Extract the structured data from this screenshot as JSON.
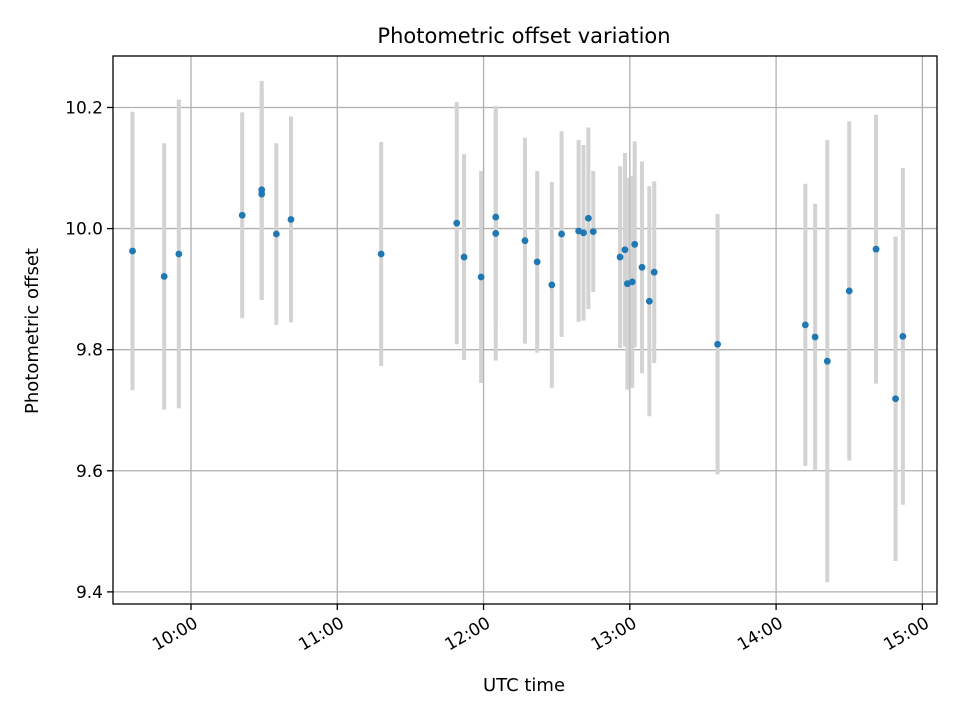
{
  "chart_data": {
    "type": "scatter",
    "title": "Photometric offset variation",
    "xlabel": "UTC time",
    "ylabel": "Photometric offset",
    "xlim": [
      "09:28",
      "15:06"
    ],
    "ylim": [
      9.38,
      10.285
    ],
    "x_ticks": [
      "10:00",
      "11:00",
      "12:00",
      "13:00",
      "14:00",
      "15:00"
    ],
    "y_ticks": [
      9.4,
      9.6,
      9.8,
      10.0,
      10.2
    ],
    "grid": true,
    "colors": {
      "point": "#1f77b4",
      "errorbar": "#d3d3d3",
      "grid": "#b0b0b0",
      "axes": "#000000"
    },
    "series": [
      {
        "points": [
          {
            "x": "09:36",
            "y": 9.963,
            "err": 0.23
          },
          {
            "x": "09:49",
            "y": 9.921,
            "err": 0.22
          },
          {
            "x": "09:55",
            "y": 9.958,
            "err": 0.255
          },
          {
            "x": "10:21",
            "y": 10.022,
            "err": 0.17
          },
          {
            "x": "10:29",
            "y": 10.057,
            "err": 0.175
          },
          {
            "x": "10:29",
            "y": 10.064,
            "err": 0.18
          },
          {
            "x": "10:35",
            "y": 9.991,
            "err": 0.15
          },
          {
            "x": "10:41",
            "y": 10.015,
            "err": 0.17
          },
          {
            "x": "11:18",
            "y": 9.958,
            "err": 0.185
          },
          {
            "x": "11:49",
            "y": 10.009,
            "err": 0.2
          },
          {
            "x": "11:52",
            "y": 9.953,
            "err": 0.17
          },
          {
            "x": "11:59",
            "y": 9.92,
            "err": 0.175
          },
          {
            "x": "12:05",
            "y": 10.019,
            "err": 0.175
          },
          {
            "x": "12:05",
            "y": 9.992,
            "err": 0.21
          },
          {
            "x": "12:17",
            "y": 9.98,
            "err": 0.17
          },
          {
            "x": "12:22",
            "y": 9.945,
            "err": 0.15
          },
          {
            "x": "12:28",
            "y": 9.907,
            "err": 0.17
          },
          {
            "x": "12:32",
            "y": 9.991,
            "err": 0.17
          },
          {
            "x": "12:39",
            "y": 9.996,
            "err": 0.15
          },
          {
            "x": "12:41",
            "y": 9.993,
            "err": 0.145
          },
          {
            "x": "12:43",
            "y": 10.017,
            "err": 0.15
          },
          {
            "x": "12:45",
            "y": 9.995,
            "err": 0.1
          },
          {
            "x": "12:56",
            "y": 9.953,
            "err": 0.15
          },
          {
            "x": "12:58",
            "y": 9.965,
            "err": 0.16
          },
          {
            "x": "12:59",
            "y": 9.909,
            "err": 0.175
          },
          {
            "x": "13:01",
            "y": 9.912,
            "err": 0.175
          },
          {
            "x": "13:02",
            "y": 9.974,
            "err": 0.17
          },
          {
            "x": "13:05",
            "y": 9.936,
            "err": 0.175
          },
          {
            "x": "13:08",
            "y": 9.88,
            "err": 0.19
          },
          {
            "x": "13:10",
            "y": 9.928,
            "err": 0.15
          },
          {
            "x": "13:36",
            "y": 9.809,
            "err": 0.215
          },
          {
            "x": "14:12",
            "y": 9.841,
            "err": 0.233
          },
          {
            "x": "14:16",
            "y": 9.821,
            "err": 0.22
          },
          {
            "x": "14:21",
            "y": 9.781,
            "err": 0.365
          },
          {
            "x": "14:30",
            "y": 9.897,
            "err": 0.28
          },
          {
            "x": "14:41",
            "y": 9.966,
            "err": 0.222
          },
          {
            "x": "14:49",
            "y": 9.719,
            "err": 0.268
          },
          {
            "x": "14:52",
            "y": 9.822,
            "err": 0.278
          }
        ]
      }
    ]
  }
}
